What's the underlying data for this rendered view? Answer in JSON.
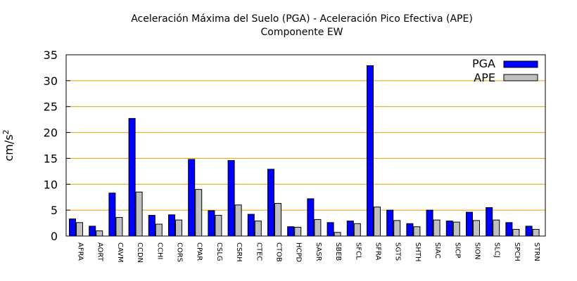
{
  "chart_data": {
    "type": "bar",
    "title": "Aceleración Máxima del Suelo (PGA) -  Aceleración Pico Efectiva (APE)",
    "subtitle": "Componente EW",
    "ylabel": "cm/s",
    "ylabel_sup": "2",
    "ylim": [
      0,
      35
    ],
    "yticks": [
      0,
      5,
      10,
      15,
      20,
      25,
      30,
      35
    ],
    "grid": true,
    "legend_position": "top-right",
    "categories": [
      "AFRA",
      "AORT",
      "CAVM",
      "CCDN",
      "CCHI",
      "CORS",
      "CPAR",
      "CSLG",
      "CSRH",
      "CTEC",
      "CTOB",
      "HCPD",
      "SASR",
      "SBEB",
      "SFCL",
      "SFRA",
      "SGTS",
      "SHTH",
      "SIAC",
      "SICP",
      "SION",
      "SLCJ",
      "SPCH",
      "STRN"
    ],
    "series": [
      {
        "name": "PGA",
        "color": "#0000ff",
        "values": [
          3.3,
          1.9,
          8.3,
          22.7,
          4.0,
          4.1,
          14.8,
          4.9,
          14.6,
          4.2,
          12.9,
          1.8,
          7.2,
          2.6,
          2.9,
          32.9,
          5.0,
          2.4,
          5.0,
          2.9,
          4.6,
          5.5,
          2.6,
          1.9
        ]
      },
      {
        "name": "APE",
        "color": "#c0c0c0",
        "values": [
          2.6,
          1.0,
          3.6,
          8.5,
          2.3,
          3.1,
          9.0,
          4.0,
          6.0,
          2.9,
          6.3,
          1.7,
          3.2,
          0.7,
          2.4,
          5.6,
          3.0,
          1.8,
          3.1,
          2.7,
          3.0,
          3.1,
          1.3,
          1.3
        ]
      }
    ]
  }
}
